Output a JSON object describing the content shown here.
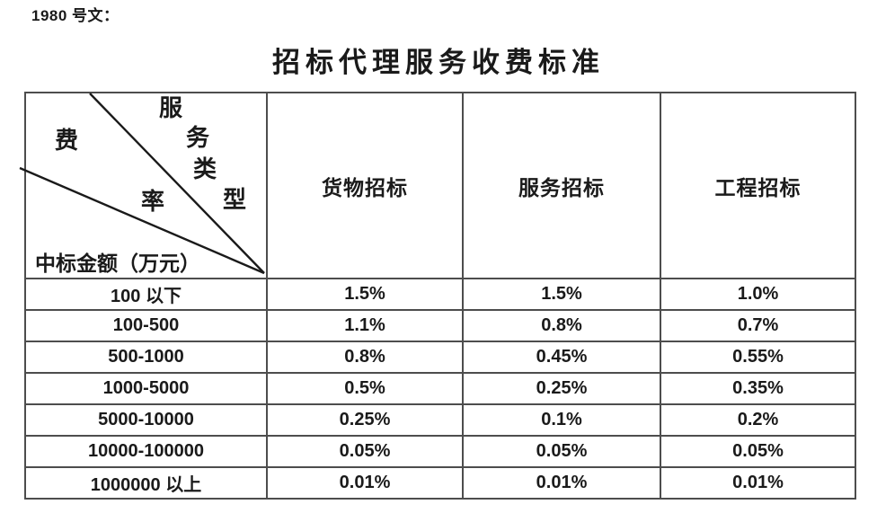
{
  "doc_label": "1980 号文：",
  "title": "招标代理服务收费标准",
  "table": {
    "corner": {
      "fee_char": "费",
      "rate_char": "率",
      "service_type_chars": [
        "服",
        "务",
        "类",
        "型"
      ],
      "amount_label": "中标金额（万元）"
    },
    "columns": [
      "货物招标",
      "服务招标",
      "工程招标"
    ],
    "rows": [
      {
        "range": "100 以下",
        "values": [
          "1.5%",
          "1.5%",
          "1.0%"
        ]
      },
      {
        "range": "100-500",
        "values": [
          "1.1%",
          "0.8%",
          "0.7%"
        ]
      },
      {
        "range": "500-1000",
        "values": [
          "0.8%",
          "0.45%",
          "0.55%"
        ]
      },
      {
        "range": "1000-5000",
        "values": [
          "0.5%",
          "0.25%",
          "0.35%"
        ]
      },
      {
        "range": "5000-10000",
        "values": [
          "0.25%",
          "0.1%",
          "0.2%"
        ]
      },
      {
        "range": "10000-100000",
        "values": [
          "0.05%",
          "0.05%",
          "0.05%"
        ]
      },
      {
        "range": "1000000 以上",
        "values": [
          "0.01%",
          "0.01%",
          "0.01%"
        ]
      }
    ]
  },
  "colors": {
    "text": "#1a1a1a",
    "border": "#4d4d4d",
    "background": "#ffffff"
  }
}
